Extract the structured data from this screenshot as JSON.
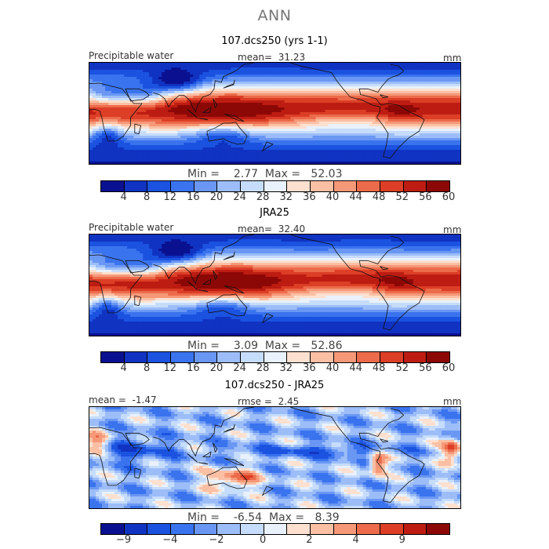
{
  "page_title": "ANN",
  "colors": {
    "abs_scale": [
      "#0a1190",
      "#1033c2",
      "#1b52e0",
      "#3a73ee",
      "#6a97f3",
      "#9cbdf8",
      "#c6dcfb",
      "#e9f1fc",
      "#fde0cf",
      "#fbbfa4",
      "#f59878",
      "#ec6b4b",
      "#dc3e26",
      "#bd1c12",
      "#8c0806"
    ],
    "diff_scale": [
      "#0a1190",
      "#1033c2",
      "#1b52e0",
      "#3a73ee",
      "#6a97f3",
      "#9cbdf8",
      "#c6dcfb",
      "#e9f1fc",
      "#fde0cf",
      "#fbbfa4",
      "#f59878",
      "#ec6b4b",
      "#dc3e26",
      "#bd1c12",
      "#8c0806"
    ]
  },
  "chart_data": [
    {
      "type": "heatmap",
      "title": "107.dcs250 (yrs 1-1)",
      "variable_label": "Precipitable water",
      "units": "mm",
      "stats": {
        "mean_label": "mean=",
        "mean": "31.23",
        "min_label": "Min =",
        "min": "2.77",
        "max_label": "Max =",
        "max": "52.03"
      },
      "levels": [
        "4",
        "8",
        "12",
        "16",
        "20",
        "24",
        "28",
        "32",
        "36",
        "40",
        "44",
        "48",
        "52",
        "56",
        "60"
      ],
      "values_range": [
        2.77,
        52.03
      ],
      "colorscale": "abs_scale"
    },
    {
      "type": "heatmap",
      "title": "JRA25",
      "variable_label": "Precipitable water",
      "units": "mm",
      "stats": {
        "mean_label": "mean=",
        "mean": "32.40",
        "min_label": "Min =",
        "min": "3.09",
        "max_label": "Max =",
        "max": "52.86"
      },
      "levels": [
        "4",
        "8",
        "12",
        "16",
        "20",
        "24",
        "28",
        "32",
        "36",
        "40",
        "44",
        "48",
        "52",
        "56",
        "60"
      ],
      "values_range": [
        3.09,
        52.86
      ],
      "colorscale": "abs_scale"
    },
    {
      "type": "heatmap",
      "title": "107.dcs250 - JRA25",
      "units": "mm",
      "stats": {
        "mean_label": "mean =",
        "mean": "-1.47",
        "rmse_label": "rmse =",
        "rmse": "2.45",
        "min_label": "Min =",
        "min": "-6.54",
        "max_label": "Max =",
        "max": "8.39"
      },
      "levels": [
        "−9",
        "",
        "−4",
        "",
        "−2",
        "",
        "0",
        "",
        "2",
        "",
        "4",
        "",
        "9"
      ],
      "values_range": [
        -6.54,
        8.39
      ],
      "colorscale": "diff_scale"
    }
  ]
}
